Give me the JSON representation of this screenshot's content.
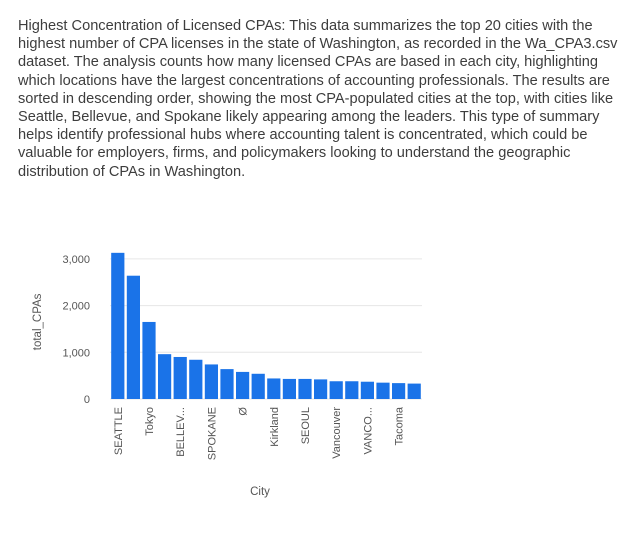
{
  "description": "Highest Concentration of Licensed CPAs: This data summarizes the top 20 cities with the highest number of CPA licenses in the state of Washington, as recorded in the Wa_CPA3.csv dataset. The analysis counts how many licensed CPAs are based in each city, highlighting which locations have the largest concentrations of accounting professionals. The results are sorted in descending order, showing the most CPA-populated cities at the top, with cities like Seattle, Bellevue, and Spokane likely appearing among the leaders. This type of summary helps identify professional hubs where accounting talent is concentrated, which could be valuable for employers, firms, and policymakers looking to understand the geographic distribution of CPAs in Washington.",
  "chart_data": {
    "type": "bar",
    "xlabel": "City",
    "ylabel": "total_CPAs",
    "ylim": [
      0,
      3300
    ],
    "yticks": [
      0,
      1000,
      2000,
      3000
    ],
    "ytick_labels": [
      "0",
      "1,000",
      "2,000",
      "3,000"
    ],
    "grid": "horizontal",
    "bar_color": "#1a73e8",
    "categories": [
      "SEATTLE",
      "",
      "Tokyo",
      "",
      "BELLEV...",
      "",
      "SPOKANE",
      "",
      "Ø",
      "",
      "Kirkland",
      "",
      "SEOUL",
      "",
      "Vancouver",
      "",
      "VANCO...",
      "",
      "Tacoma",
      ""
    ],
    "values": [
      3130,
      2640,
      1650,
      960,
      900,
      840,
      740,
      640,
      580,
      540,
      440,
      430,
      430,
      420,
      380,
      380,
      370,
      350,
      340,
      330
    ]
  }
}
